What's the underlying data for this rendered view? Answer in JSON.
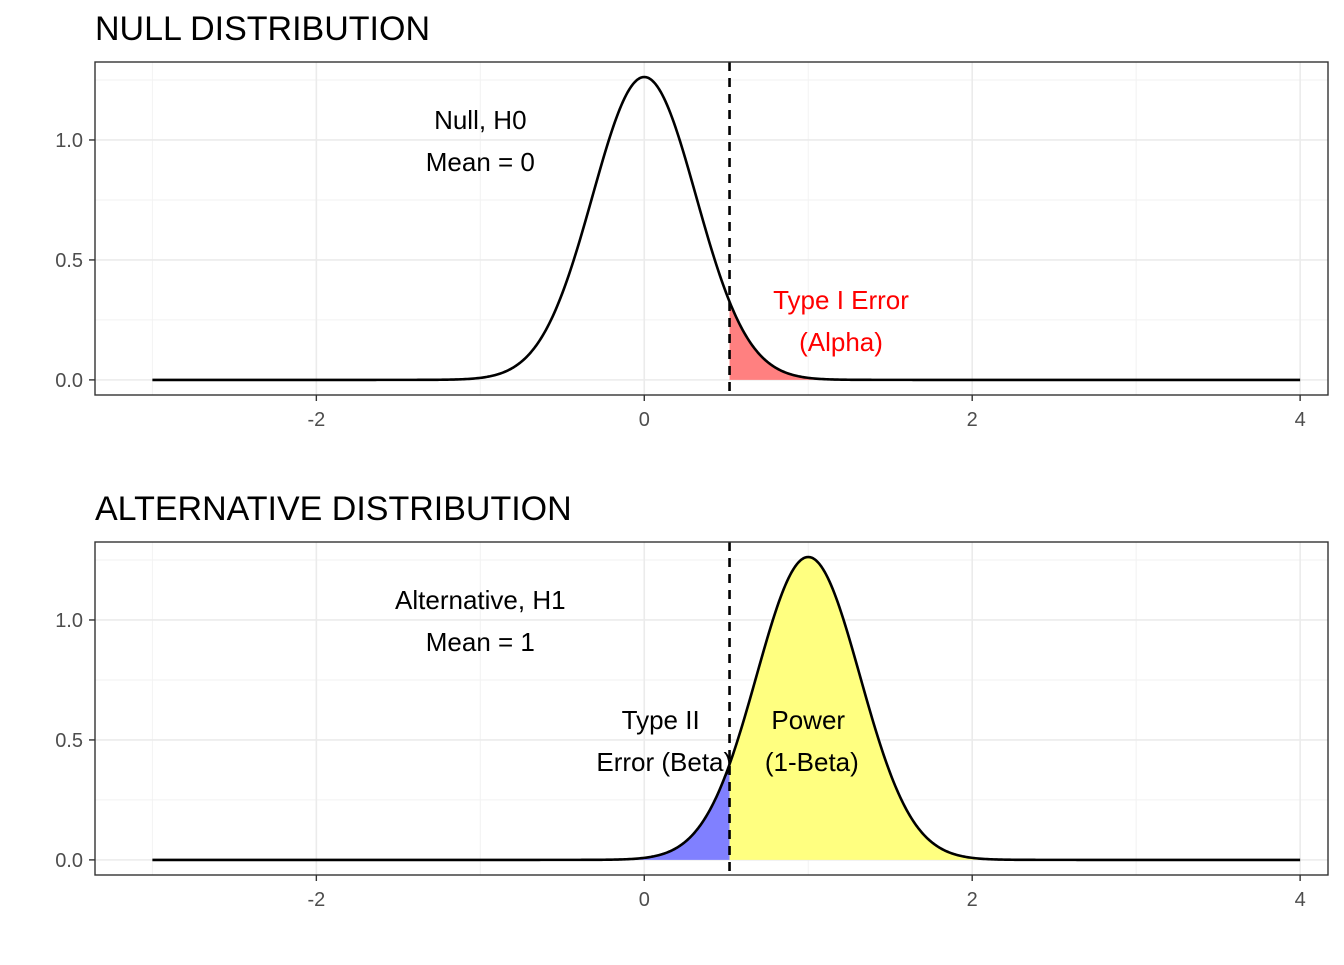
{
  "chart_data": [
    {
      "type": "area",
      "title": "NULL DISTRIBUTION",
      "xlabel": "",
      "ylabel": "",
      "xlim": [
        -3.35,
        4.17
      ],
      "ylim": [
        -0.063,
        1.325
      ],
      "x_ticks": [
        -2,
        0,
        2,
        4
      ],
      "x_tick_labels": [
        "-2",
        "0",
        "2",
        "4"
      ],
      "y_ticks": [
        0.0,
        0.5,
        1.0
      ],
      "y_tick_labels": [
        "0.0",
        "0.5",
        "1.0"
      ],
      "grid": true,
      "curve": {
        "name": "Null, H0",
        "distribution": "normal",
        "mean": 0,
        "sd": 0.316,
        "x_from": -3,
        "x_to": 4,
        "color": "#000000"
      },
      "critical_value": 0.52,
      "shaded_regions": [
        {
          "name": "Type I Error (Alpha)",
          "from": 0.52,
          "to": 4,
          "color": "#ff8080"
        }
      ],
      "annotations": [
        {
          "lines": [
            "Null, H0",
            "Mean = 0"
          ],
          "x": -1.0,
          "y": 1.0,
          "color": "#000000"
        },
        {
          "lines": [
            "Type I Error",
            "(Alpha)"
          ],
          "x": 1.2,
          "y": 0.25,
          "color": "#ff0000"
        }
      ]
    },
    {
      "type": "area",
      "title": "ALTERNATIVE DISTRIBUTION",
      "xlabel": "",
      "ylabel": "",
      "xlim": [
        -3.35,
        4.17
      ],
      "ylim": [
        -0.063,
        1.325
      ],
      "x_ticks": [
        -2,
        0,
        2,
        4
      ],
      "x_tick_labels": [
        "-2",
        "0",
        "2",
        "4"
      ],
      "y_ticks": [
        0.0,
        0.5,
        1.0
      ],
      "y_tick_labels": [
        "0.0",
        "0.5",
        "1.0"
      ],
      "grid": true,
      "curve": {
        "name": "Alternative, H1",
        "distribution": "normal",
        "mean": 1,
        "sd": 0.316,
        "x_from": -3,
        "x_to": 4,
        "color": "#000000"
      },
      "critical_value": 0.52,
      "shaded_regions": [
        {
          "name": "Type II Error (Beta)",
          "from": -3,
          "to": 0.52,
          "color": "#8080ff"
        },
        {
          "name": "Power (1-Beta)",
          "from": 0.52,
          "to": 4,
          "color": "#ffff80"
        }
      ],
      "annotations": [
        {
          "lines": [
            "Alternative, H1",
            "Mean = 1"
          ],
          "x": -1.0,
          "y": 1.0,
          "color": "#000000"
        },
        {
          "lines": [
            "Type II",
            " Error (Beta)"
          ],
          "x": 0.1,
          "y": 0.5,
          "color": "#000000"
        },
        {
          "lines": [
            "Power",
            " (1-Beta)"
          ],
          "x": 1.0,
          "y": 0.5,
          "color": "#000000"
        }
      ]
    }
  ]
}
